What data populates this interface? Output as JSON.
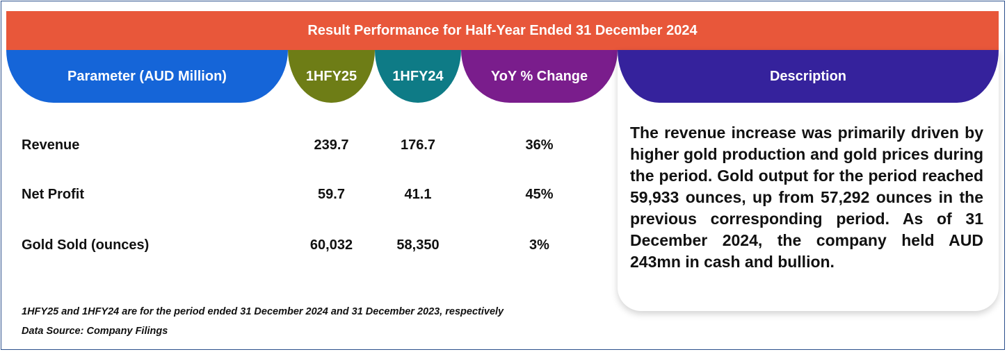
{
  "title": "Result Performance for Half-Year Ended 31 December 2024",
  "headers": {
    "parameter": "Parameter (AUD Million)",
    "y25": "1HFY25",
    "y24": "1HFY24",
    "yoy": "YoY % Change",
    "description": "Description"
  },
  "rows": [
    {
      "label": "Revenue",
      "y25": "239.7",
      "y24": "176.7",
      "yoy": "36%"
    },
    {
      "label": "Net Profit",
      "y25": "59.7",
      "y24": "41.1",
      "yoy": "45%"
    },
    {
      "label": "Gold Sold (ounces)",
      "y25": "60,032",
      "y24": "58,350",
      "yoy": "3%"
    }
  ],
  "description": "The revenue increase was primarily driven by higher gold production and gold prices during the period. Gold output for the period reached 59,933 ounces, up from 57,292 ounces in the previous corresponding period. As of 31 December 2024, the company held AUD 243mn in cash and bullion.",
  "footnote": "1HFY25 and 1HFY24 are for the period ended 31 December 2024 and 31 December 2023, respectively",
  "source": "Data Source: Company Filings",
  "colors": {
    "banner": "#e8573a",
    "parameter_header": "#1565d8",
    "y25_header": "#6e7d16",
    "y24_header": "#0e7b86",
    "yoy_header": "#7a1d8c",
    "description_header": "#35229c"
  }
}
